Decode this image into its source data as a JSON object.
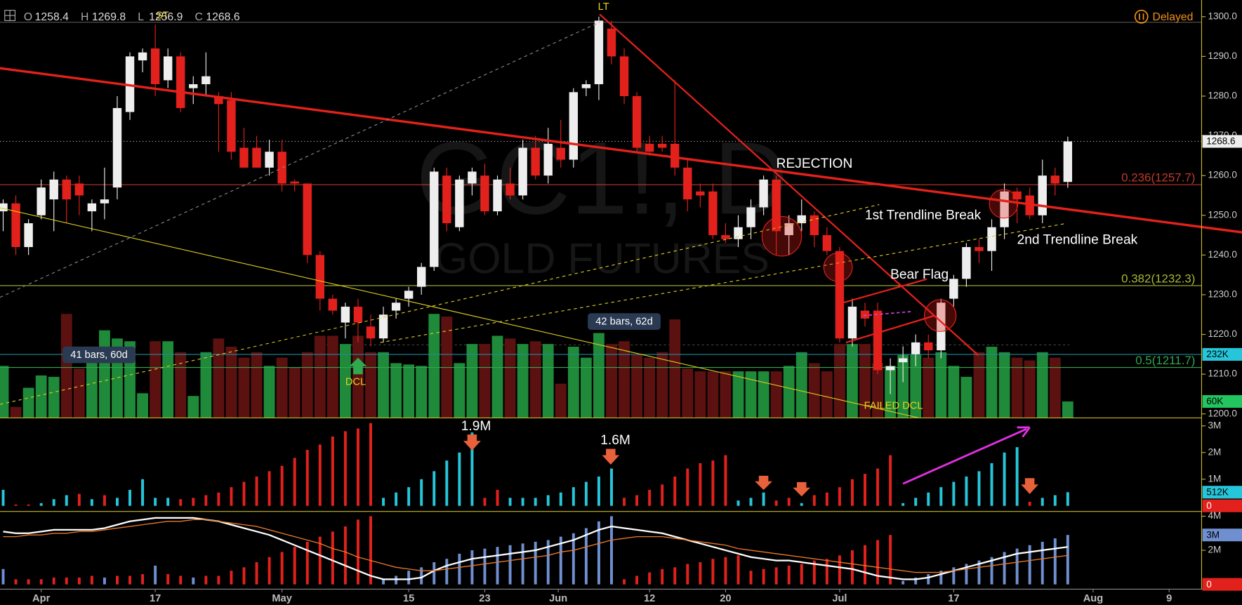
{
  "chart_data": {
    "type": "candlestick",
    "header": [
      {
        "label": "O",
        "value": 1258.4
      },
      {
        "label": "H",
        "value": 1269.8
      },
      {
        "label": "L",
        "value": 1256.9
      },
      {
        "label": "C",
        "value": 1268.6
      }
    ],
    "status": "Delayed",
    "watermark": [
      "GC1!, D",
      "GOLD FUTURES"
    ],
    "xlim": [
      -0.25,
      94.56
    ],
    "xticks": [
      {
        "value": 3,
        "label": "Apr"
      },
      {
        "value": 12,
        "label": "17"
      },
      {
        "value": 22,
        "label": "May"
      },
      {
        "value": 32,
        "label": "15"
      },
      {
        "value": 38,
        "label": "23"
      },
      {
        "value": 43.8,
        "label": "Jun"
      },
      {
        "value": 51,
        "label": "12"
      },
      {
        "value": 57,
        "label": "20"
      },
      {
        "value": 66,
        "label": "Jul"
      },
      {
        "value": 75,
        "label": "17"
      },
      {
        "value": 86,
        "label": "Aug"
      },
      {
        "value": 92,
        "label": "9"
      }
    ],
    "ylim": [
      1199,
      1304.2
    ],
    "yticks": [
      {
        "value": 1200,
        "label": "1200.0"
      },
      {
        "value": 1210,
        "label": "1210.0"
      },
      {
        "value": 1220,
        "label": "1220.0"
      },
      {
        "value": 1230,
        "label": "1230.0"
      },
      {
        "value": 1240,
        "label": "1240.0"
      },
      {
        "value": 1250,
        "label": "1250.0"
      },
      {
        "value": 1260,
        "label": "1260.0"
      },
      {
        "value": 1270,
        "label": "1270.0"
      },
      {
        "value": 1280,
        "label": "1280.0"
      },
      {
        "value": 1290,
        "label": "1290.0"
      },
      {
        "value": 1300,
        "label": "1300.0"
      }
    ],
    "colors": {
      "up": "#eeeeee",
      "down": "#e3211c"
    },
    "open": [
      1251,
      1253,
      1242,
      1250,
      1254,
      1259,
      1258,
      1251,
      1253,
      1257,
      1276,
      1289,
      1292,
      1284,
      1290,
      1282,
      1283,
      1280,
      1279,
      1267,
      1267,
      1262,
      1266,
      1258.5,
      1258,
      1240,
      1229,
      1223,
      1227,
      1222,
      1219,
      1226,
      1229,
      1232,
      1237,
      1260,
      1247,
      1258,
      1260,
      1251,
      1258,
      1255,
      1267,
      1260,
      1267,
      1264,
      1282,
      1283,
      1297,
      1290,
      1280,
      1268,
      1268,
      1268,
      1262,
      1256,
      1256,
      1245,
      1244,
      1247,
      1252,
      1259,
      1245,
      1248,
      1250,
      1245,
      1241,
      1219,
      1226,
      1226,
      1211,
      1213,
      1215,
      1218,
      1216,
      1229,
      1234,
      1242,
      1241,
      1247,
      1256,
      1255,
      1250,
      1260,
      1258.4
    ],
    "high": [
      1254,
      1255,
      1249,
      1259,
      1261,
      1260,
      1260,
      1254,
      1262,
      1280,
      1291,
      1292,
      1298,
      1292,
      1291,
      1285,
      1291,
      1281,
      1281,
      1272,
      1270,
      1269,
      1269,
      1259,
      1258,
      1241,
      1230,
      1228,
      1229,
      1225,
      1227,
      1229,
      1232,
      1238,
      1262,
      1262,
      1260,
      1262,
      1263,
      1260,
      1262,
      1269,
      1270,
      1272,
      1274,
      1282,
      1284,
      1300,
      1299,
      1292,
      1281,
      1270,
      1270,
      1284,
      1264,
      1258,
      1258,
      1248,
      1250,
      1254,
      1260,
      1260,
      1250,
      1254,
      1251,
      1247,
      1242,
      1229,
      1228,
      1228,
      1214,
      1217,
      1220,
      1220,
      1229,
      1235,
      1243,
      1244,
      1249,
      1258,
      1257,
      1257,
      1264,
      1262,
      1269.8
    ],
    "low": [
      1246,
      1240,
      1240,
      1249,
      1246,
      1248,
      1250,
      1246,
      1249,
      1254,
      1274,
      1286,
      1280,
      1282,
      1276,
      1278,
      1280,
      1266,
      1264,
      1262,
      1262,
      1260,
      1256,
      1256,
      1238,
      1226,
      1225,
      1219,
      1218,
      1217,
      1218,
      1224,
      1227,
      1230,
      1236,
      1246,
      1246,
      1255,
      1250,
      1250,
      1254,
      1254,
      1259,
      1258,
      1262,
      1262,
      1280,
      1279,
      1288,
      1278,
      1266,
      1265,
      1266,
      1260,
      1251,
      1252,
      1244,
      1243,
      1242,
      1244,
      1250,
      1240,
      1240,
      1246,
      1242,
      1240,
      1218,
      1217,
      1222,
      1210,
      1205,
      1208,
      1212,
      1214,
      1214,
      1227,
      1232,
      1238,
      1236,
      1244,
      1248,
      1249,
      1248,
      1255,
      1256.9
    ],
    "close": [
      1253,
      1242,
      1248,
      1257,
      1259,
      1254,
      1255,
      1253,
      1254,
      1277,
      1290,
      1291,
      1283,
      1290,
      1277,
      1283,
      1285,
      1278,
      1266,
      1262,
      1262,
      1266,
      1258,
      1258,
      1240,
      1229,
      1226,
      1227,
      1223,
      1219,
      1225,
      1228,
      1231,
      1237,
      1261,
      1248,
      1259,
      1261,
      1251,
      1259,
      1255,
      1267,
      1260,
      1268,
      1264,
      1281,
      1283,
      1299,
      1290,
      1280,
      1267,
      1266,
      1267,
      1262,
      1254,
      1255,
      1245,
      1244,
      1247,
      1252,
      1259,
      1246,
      1248,
      1250,
      1245,
      1241,
      1219,
      1227,
      1224,
      1211,
      1212,
      1214,
      1218,
      1216,
      1228,
      1234,
      1242,
      1241,
      1247,
      1256,
      1254,
      1250,
      1260,
      1258,
      1268.6
    ],
    "last_price": 1268.6,
    "fib_levels": [
      {
        "value": 1257.7,
        "label": "0.236(1257.7)",
        "color": "#c0392b"
      },
      {
        "value": 1232.3,
        "label": "0.382(1232.3)",
        "color": "#a8b832"
      },
      {
        "value": 1211.7,
        "label": "0.5(1211.7)",
        "color": "#2fa84f"
      }
    ],
    "annotations": [
      "REJECTION",
      "1st Trendline Break",
      "2nd Trendline Break",
      "Bear Flag",
      "DCL",
      "FAILED DCL",
      "LT",
      "ST",
      "41 bars, 60d",
      "42 bars, 62d",
      "1.9M",
      "1.6M"
    ],
    "volume": {
      "ylim": [
        0,
        1527
      ],
      "colors": {
        "up": "#1f8a3a",
        "down": "#5c1111"
      },
      "values": [
        190,
        40,
        110,
        155,
        150,
        380,
        180,
        260,
        320,
        290,
        280,
        90,
        280,
        280,
        240,
        80,
        240,
        290,
        260,
        220,
        240,
        190,
        220,
        185,
        240,
        300,
        300,
        270,
        300,
        240,
        240,
        200,
        195,
        190,
        380,
        370,
        200,
        270,
        270,
        300,
        290,
        270,
        280,
        270,
        125,
        260,
        220,
        310,
        270,
        280,
        230,
        220,
        240,
        360,
        180,
        170,
        170,
        170,
        170,
        170,
        170,
        170,
        190,
        240,
        200,
        170,
        270,
        270,
        270,
        200,
        190,
        230,
        230,
        220,
        240,
        190,
        150,
        240,
        260,
        240,
        220,
        210,
        240,
        220,
        60
      ],
      "tags": [
        {
          "value": 232,
          "label": "232K",
          "color": "#26c6da"
        },
        {
          "value": 60,
          "label": "60K",
          "color": "#22c55e"
        }
      ]
    },
    "panels": [
      {
        "ylim": [
          -0.21,
          3.3
        ],
        "palette": {
          "u": "#26c6da",
          "d": "#e3211c"
        },
        "yticks": [
          {
            "value": 1,
            "label": "1M"
          },
          {
            "value": 2,
            "label": "2M"
          },
          {
            "value": 3,
            "label": "3M"
          }
        ],
        "tags": [
          {
            "value": 0.512,
            "label": "512K",
            "color": "#26c6da"
          },
          {
            "value": 0,
            "label": "0",
            "color": "#e3211c"
          }
        ],
        "values": [
          0.6,
          0.05,
          0.05,
          0.1,
          0.25,
          0.4,
          0.45,
          0.25,
          0.4,
          0.3,
          0.6,
          1.0,
          0.3,
          0.3,
          0.25,
          0.3,
          0.4,
          0.5,
          0.7,
          0.9,
          1.1,
          1.3,
          1.5,
          1.8,
          2.1,
          2.3,
          2.6,
          2.8,
          2.9,
          3.1,
          0.3,
          0.5,
          0.7,
          1.0,
          1.3,
          1.7,
          2.0,
          2.75,
          0.3,
          0.6,
          0.3,
          0.3,
          0.3,
          0.4,
          0.5,
          0.7,
          0.9,
          1.1,
          1.4,
          0.3,
          0.4,
          0.6,
          0.8,
          1.1,
          1.4,
          1.6,
          1.7,
          1.9,
          0.2,
          0.3,
          0.5,
          0.2,
          0.3,
          0.1,
          0.4,
          0.5,
          0.7,
          1.0,
          1.2,
          1.4,
          1.9,
          0.1,
          0.3,
          0.5,
          0.7,
          0.9,
          1.1,
          1.3,
          1.6,
          2.0,
          2.2,
          0.15,
          0.3,
          0.4,
          0.512
        ],
        "bar_colors": [
          "u",
          "d",
          "d",
          "u",
          "u",
          "u",
          "d",
          "u",
          "d",
          "u",
          "u",
          "u",
          "u",
          "u",
          "d",
          "d",
          "d",
          "d",
          "d",
          "d",
          "d",
          "d",
          "d",
          "d",
          "d",
          "d",
          "d",
          "d",
          "d",
          "d",
          "u",
          "u",
          "u",
          "u",
          "u",
          "u",
          "u",
          "u",
          "d",
          "d",
          "u",
          "u",
          "u",
          "u",
          "u",
          "u",
          "u",
          "u",
          "u",
          "d",
          "d",
          "d",
          "d",
          "d",
          "d",
          "d",
          "d",
          "d",
          "u",
          "u",
          "u",
          "d",
          "d",
          "u",
          "d",
          "d",
          "d",
          "d",
          "d",
          "d",
          "d",
          "u",
          "u",
          "u",
          "u",
          "u",
          "u",
          "u",
          "u",
          "u",
          "u",
          "d",
          "u",
          "u",
          "u"
        ]
      },
      {
        "ylim": [
          -0.28,
          4.28
        ],
        "palette": {
          "b": "#6f8fd0",
          "r": "#e3211c"
        },
        "yticks": [
          {
            "value": 2,
            "label": "2M"
          },
          {
            "value": 4,
            "label": "4M"
          }
        ],
        "tags": [
          {
            "value": 2.9,
            "label": "3M",
            "color": "#6f8fd0"
          },
          {
            "value": 0,
            "label": "0",
            "color": "#e3211c"
          }
        ],
        "values": [
          0.9,
          0.3,
          0.3,
          0.3,
          0.4,
          0.4,
          0.4,
          0.5,
          0.4,
          0.5,
          0.5,
          0.6,
          1.1,
          0.6,
          0.5,
          0.4,
          0.5,
          0.5,
          0.8,
          1.0,
          1.3,
          1.6,
          1.9,
          2.2,
          2.5,
          2.8,
          3.1,
          3.4,
          3.8,
          4.0,
          0.3,
          0.5,
          0.8,
          1.0,
          1.3,
          1.5,
          1.8,
          2.0,
          2.1,
          2.2,
          2.3,
          2.4,
          2.5,
          2.6,
          2.8,
          3.0,
          3.3,
          3.7,
          4.0,
          0.3,
          0.5,
          0.7,
          0.9,
          1.0,
          1.2,
          1.3,
          1.5,
          1.6,
          1.7,
          0.8,
          0.9,
          1.0,
          1.1,
          1.2,
          1.4,
          1.5,
          1.7,
          2.0,
          2.3,
          2.6,
          2.9,
          0.2,
          0.4,
          0.6,
          0.8,
          1.0,
          1.2,
          1.4,
          1.6,
          1.9,
          2.1,
          2.3,
          2.5,
          2.7,
          2.9
        ],
        "bar_colors": [
          "b",
          "r",
          "r",
          "r",
          "r",
          "r",
          "r",
          "r",
          "b",
          "r",
          "r",
          "r",
          "b",
          "r",
          "r",
          "b",
          "r",
          "r",
          "r",
          "r",
          "r",
          "r",
          "r",
          "r",
          "r",
          "r",
          "r",
          "r",
          "r",
          "r",
          "b",
          "b",
          "b",
          "b",
          "b",
          "b",
          "b",
          "b",
          "b",
          "b",
          "b",
          "b",
          "b",
          "b",
          "b",
          "b",
          "b",
          "b",
          "b",
          "r",
          "r",
          "r",
          "r",
          "r",
          "r",
          "r",
          "r",
          "r",
          "r",
          "r",
          "r",
          "r",
          "r",
          "r",
          "r",
          "r",
          "r",
          "r",
          "r",
          "r",
          "r",
          "b",
          "b",
          "b",
          "b",
          "b",
          "b",
          "b",
          "b",
          "b",
          "b",
          "b",
          "b",
          "b",
          "b"
        ],
        "lines": [
          {
            "color": "#ffffff",
            "values": [
              3.1,
              3.0,
              3.0,
              3.1,
              3.2,
              3.2,
              3.2,
              3.2,
              3.3,
              3.5,
              3.7,
              3.8,
              3.9,
              3.9,
              3.9,
              3.9,
              3.8,
              3.7,
              3.5,
              3.3,
              3.1,
              2.9,
              2.6,
              2.3,
              2.0,
              1.7,
              1.4,
              1.1,
              0.8,
              0.5,
              0.3,
              0.3,
              0.3,
              0.4,
              0.8,
              1.1,
              1.3,
              1.5,
              1.6,
              1.7,
              1.8,
              1.9,
              2.0,
              2.2,
              2.4,
              2.6,
              2.9,
              3.2,
              3.4,
              3.3,
              3.2,
              3.1,
              3.0,
              2.8,
              2.6,
              2.4,
              2.2,
              2.0,
              1.8,
              1.6,
              1.5,
              1.4,
              1.4,
              1.3,
              1.2,
              1.1,
              1.0,
              0.9,
              0.7,
              0.5,
              0.4,
              0.3,
              0.3,
              0.4,
              0.6,
              0.8,
              1.0,
              1.2,
              1.4,
              1.6,
              1.8,
              1.9,
              2.0,
              2.1,
              2.2
            ]
          },
          {
            "color": "#e8792b",
            "values": [
              2.8,
              2.8,
              2.9,
              2.9,
              3.0,
              3.0,
              3.1,
              3.1,
              3.2,
              3.3,
              3.4,
              3.5,
              3.6,
              3.7,
              3.7,
              3.8,
              3.8,
              3.7,
              3.6,
              3.5,
              3.4,
              3.2,
              3.0,
              2.8,
              2.6,
              2.4,
              2.1,
              1.9,
              1.6,
              1.4,
              1.2,
              1.0,
              0.9,
              0.8,
              0.8,
              0.9,
              1.0,
              1.1,
              1.2,
              1.3,
              1.4,
              1.5,
              1.6,
              1.7,
              1.9,
              2.0,
              2.2,
              2.4,
              2.6,
              2.7,
              2.8,
              2.8,
              2.8,
              2.7,
              2.6,
              2.5,
              2.4,
              2.3,
              2.1,
              2.0,
              1.9,
              1.8,
              1.7,
              1.6,
              1.5,
              1.4,
              1.3,
              1.2,
              1.1,
              1.0,
              0.9,
              0.8,
              0.7,
              0.7,
              0.7,
              0.8,
              0.9,
              1.0,
              1.1,
              1.2,
              1.3,
              1.4,
              1.5,
              1.6,
              1.7
            ]
          }
        ]
      }
    ]
  }
}
